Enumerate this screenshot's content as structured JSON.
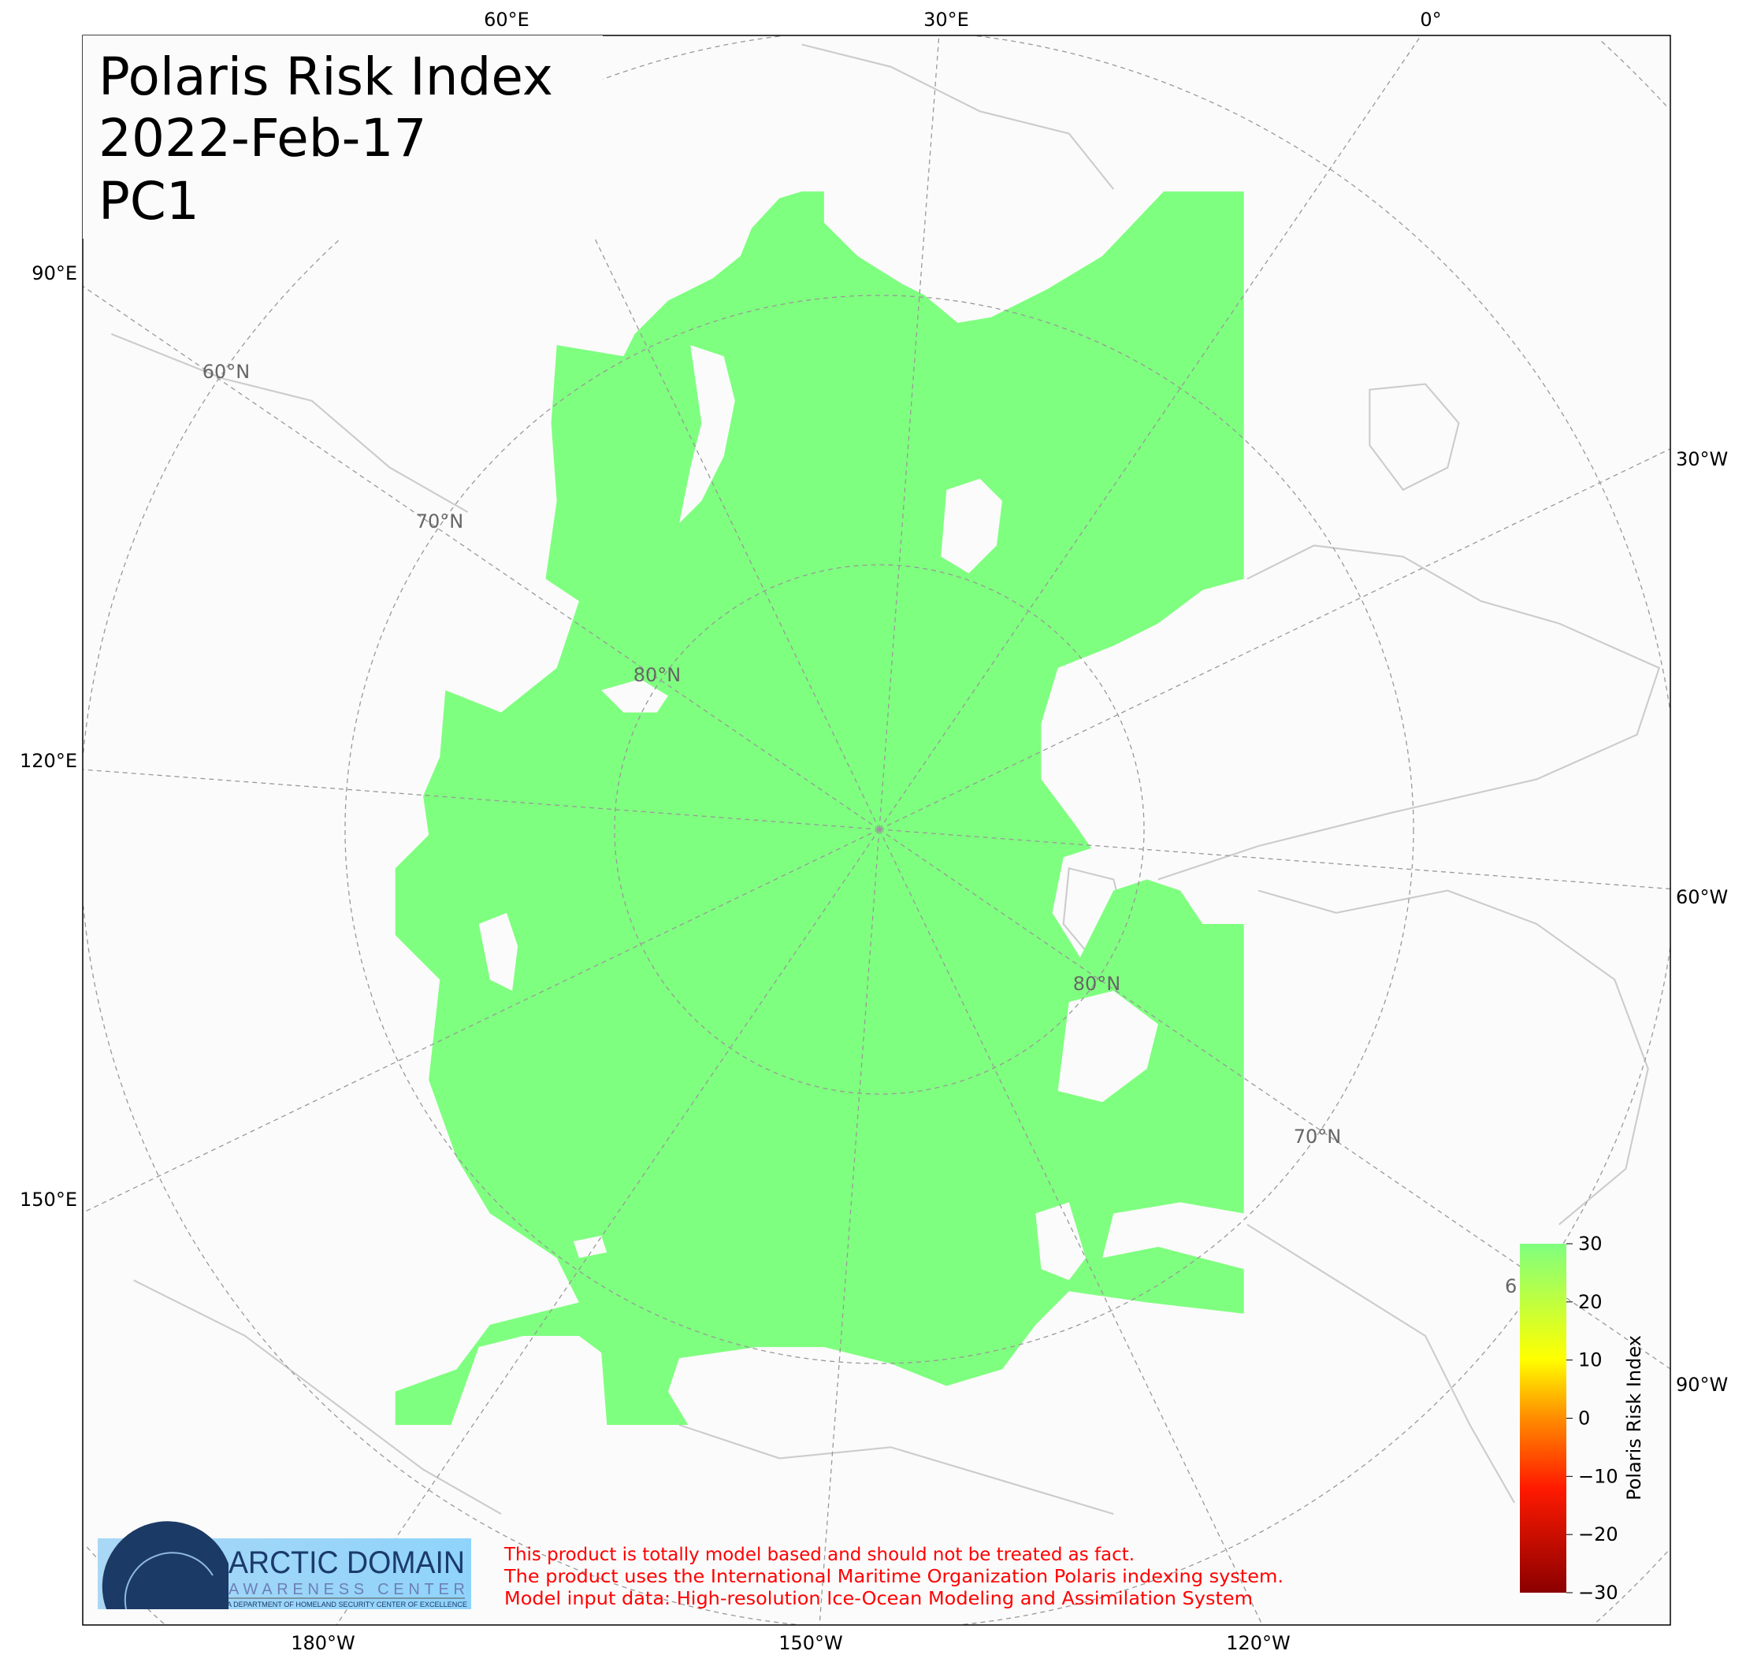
{
  "title": {
    "line1": "Polaris Risk Index",
    "line2": "2022-Feb-17",
    "line3": "PC1"
  },
  "map": {
    "projection": "north-polar-stereographic",
    "ocean_color": "#7fff7f",
    "land_color": "#fbfbfb",
    "coast_color": "#cccccc",
    "lon_labels": {
      "top": [
        "60°E",
        "30°E",
        "0°"
      ],
      "left": [
        "90°E",
        "120°E",
        "150°E"
      ],
      "right": [
        "30°W",
        "60°W",
        "90°W"
      ],
      "bottom": [
        "180°W",
        "150°W",
        "120°W"
      ]
    },
    "lat_labels": [
      "60°N",
      "70°N",
      "80°N",
      "80°N",
      "70°N",
      "6"
    ]
  },
  "colorbar": {
    "label": "Polaris Risk Index",
    "ticks": [
      "30",
      "20",
      "10",
      "0",
      "−10",
      "−20",
      "−30"
    ],
    "range": [
      -30,
      30
    ],
    "colors": [
      "#8b0000",
      "#ff1a00",
      "#ff8c00",
      "#ffff00",
      "#7fff7f"
    ]
  },
  "logo": {
    "line1": "ARCTIC DOMAIN",
    "line2": "AWARENESS CENTER",
    "line3": "A DEPARTMENT OF HOMELAND SECURITY CENTER OF EXCELLENCE"
  },
  "disclaimer": [
    "This product is totally model based and should not be treated as fact.",
    "The product uses the International Maritime Organization Polaris indexing system.",
    "Model input data: High-resolution Ice-Ocean Modeling and Assimilation System"
  ]
}
